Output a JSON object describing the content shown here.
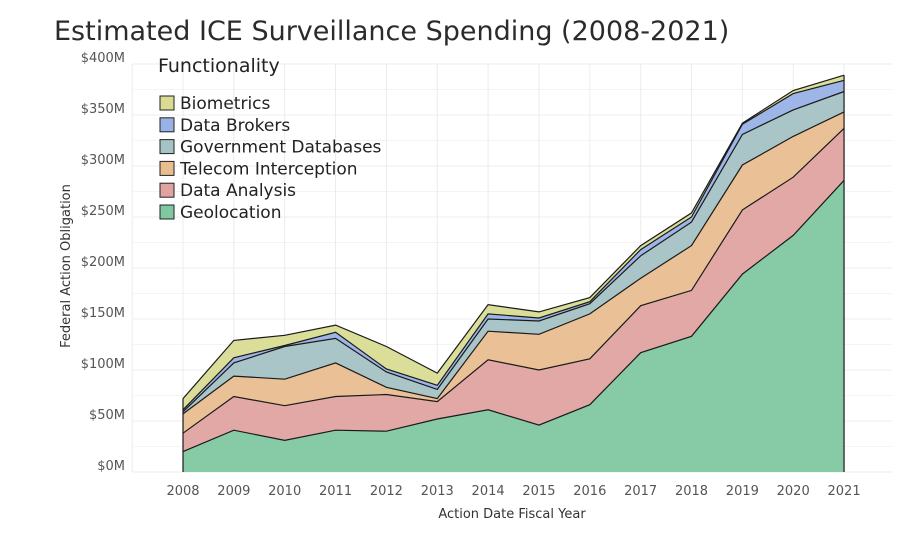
{
  "chart_data": {
    "type": "area",
    "title": "Estimated ICE Surveillance Spending (2008-2021)",
    "xlabel": "Action Date Fiscal Year",
    "ylabel": "Federal Action Obligation",
    "legend_title": "Functionality",
    "legend_position": "top-left",
    "ylim": [
      0,
      400
    ],
    "y_ticks": [
      0,
      50,
      100,
      150,
      200,
      250,
      300,
      350,
      400
    ],
    "y_tick_labels": [
      "$0M",
      "$50M",
      "$100M",
      "$150M",
      "$200M",
      "$250M",
      "$300M",
      "$350M",
      "$400M"
    ],
    "grid": true,
    "x": [
      2008,
      2009,
      2010,
      2011,
      2012,
      2013,
      2014,
      2015,
      2016,
      2017,
      2018,
      2019,
      2020,
      2021
    ],
    "x_labels": [
      "2008",
      "2009",
      "2010",
      "2011",
      "2012",
      "2013",
      "2014",
      "2015",
      "2016",
      "2017",
      "2018",
      "2019",
      "2020",
      "2021"
    ],
    "series": [
      {
        "name": "Geolocation",
        "color": "#7fc8a1",
        "values": [
          20,
          41,
          31,
          41,
          40,
          52,
          61,
          46,
          66,
          117,
          133,
          194,
          232,
          286
        ]
      },
      {
        "name": "Data Analysis",
        "color": "#e0a3a1",
        "values": [
          18,
          33,
          34,
          33,
          36,
          17,
          49,
          54,
          45,
          46,
          45,
          63,
          57,
          51
        ]
      },
      {
        "name": "Telecom Interception",
        "color": "#e9bd90",
        "values": [
          19,
          20,
          26,
          33,
          7,
          3,
          28,
          35,
          44,
          27,
          44,
          44,
          40,
          16
        ]
      },
      {
        "name": "Government Databases",
        "color": "#a5c2c4",
        "values": [
          2,
          13,
          32,
          24,
          15,
          9,
          12,
          13,
          10,
          22,
          23,
          30,
          26,
          20
        ]
      },
      {
        "name": "Data Brokers",
        "color": "#98b1e6",
        "values": [
          2,
          5,
          1,
          6,
          3,
          4,
          5,
          3,
          2,
          6,
          5,
          10,
          16,
          11
        ]
      },
      {
        "name": "Biometrics",
        "color": "#d9dc92",
        "values": [
          11,
          17,
          10,
          7,
          22,
          12,
          9,
          6,
          4,
          4,
          4,
          1,
          3,
          5
        ]
      }
    ]
  }
}
